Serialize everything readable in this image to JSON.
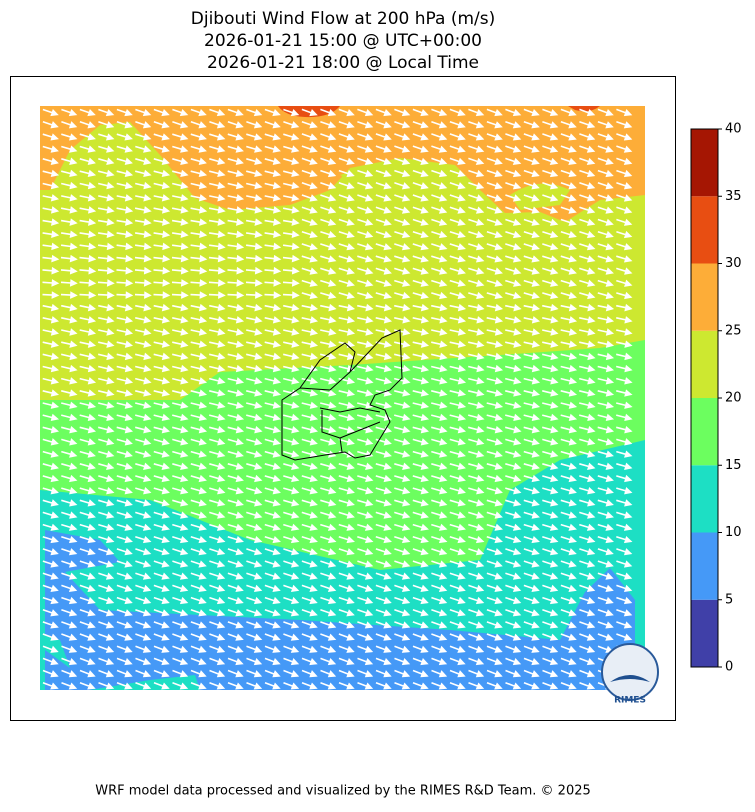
{
  "header": {
    "title_lines": [
      "Djibouti Wind Flow at 200 hPa (m/s)",
      "2026-01-21 15:00 @ UTC+00:00",
      "2026-01-21 18:00 @ Local Time"
    ]
  },
  "colorbar": {
    "ticks": [
      0,
      5,
      10,
      15,
      20,
      25,
      30,
      35,
      40
    ],
    "colors": [
      "#4040a8",
      "#4599f7",
      "#1ddfc4",
      "#6cfe5f",
      "#cde830",
      "#fdad38",
      "#e84e12",
      "#a51603"
    ]
  },
  "logo": {
    "text": "RIMES"
  },
  "footer": {
    "text": "WRF model data processed and visualized by the RIMES R&D Team. © 2025"
  }
}
